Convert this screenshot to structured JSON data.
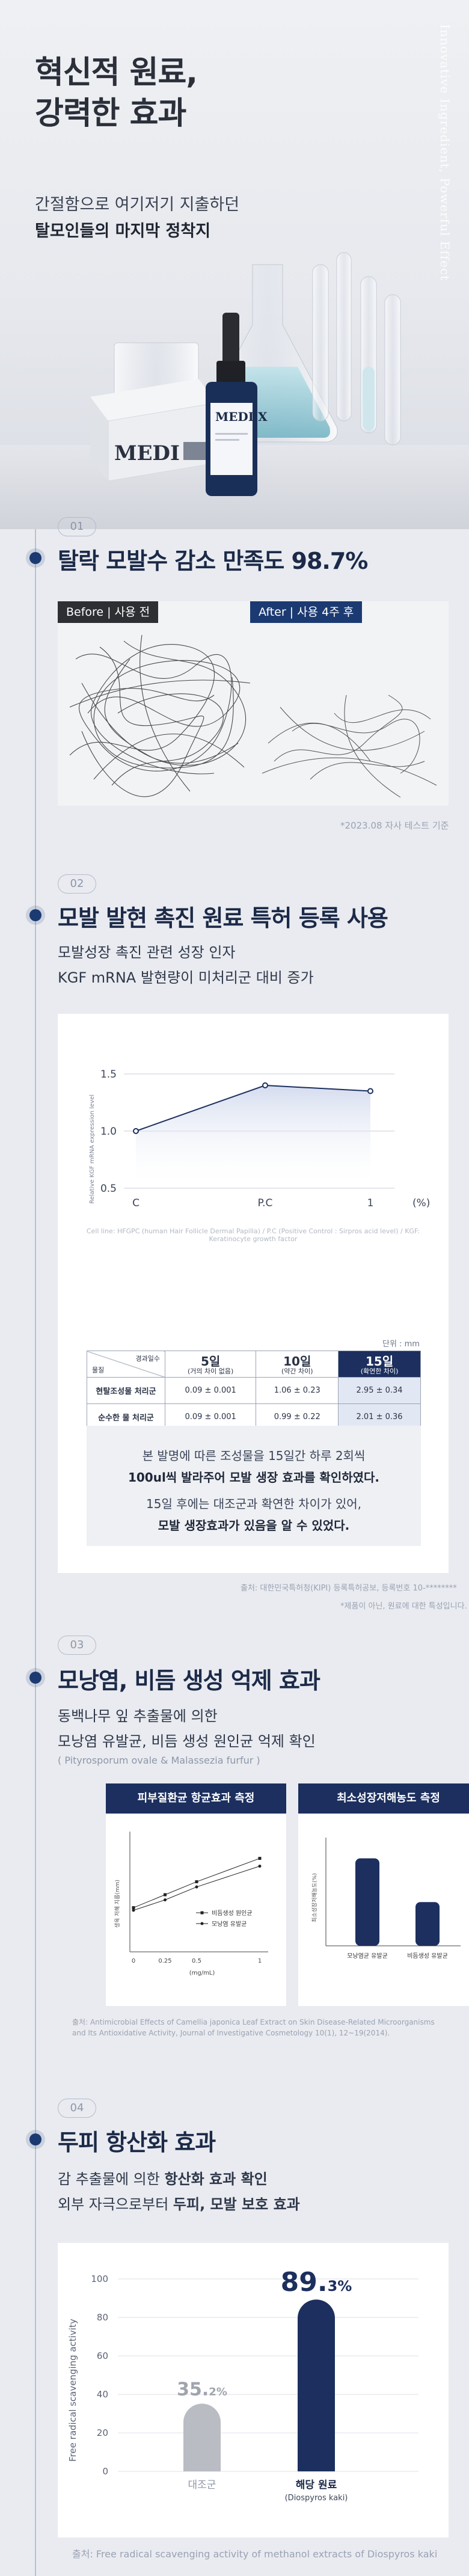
{
  "hero": {
    "title_line1": "혁신적 원료,",
    "title_line2": "강력한 효과",
    "sub1": "간절함으로 여기저기 지출하던",
    "sub2": "탈모인들의 마지막 정착지",
    "vertical_text": "Innovative Ingredient, Powerful Effect",
    "product_box_text": "MEDI X",
    "bottle_label": "MEDI X"
  },
  "section1": {
    "num": "01",
    "title": "탈락 모발수 감소 만족도 98.7%",
    "before_label": "Before | 사용 전",
    "after_label": "After | 사용 4주 후",
    "footnote": "*2023.08 자사 테스트 기준"
  },
  "section2": {
    "num": "02",
    "title": "모발 발현 촉진 원료 특허 등록 사용",
    "line1": "모발성장 촉진 관련 성장 인자",
    "line2": "KGF mRNA 발현량이 미처리군 대비 증가",
    "chart_note": "Cell line: HFGPC (human Hair Follicle Dermal Papilla) / P.C (Positive Control : Sirpros acid level) / KGF: Keratinocyte growth factor",
    "unit": "단위 : mm",
    "table": {
      "corner_top": "경과일수",
      "corner_bottom": "물질",
      "cols": [
        {
          "day": "5일",
          "sub": "(거의 차이 없음)"
        },
        {
          "day": "10일",
          "sub": "(약간 차이)"
        },
        {
          "day": "15일",
          "sub": "(확연한 차이)"
        }
      ],
      "rows": [
        {
          "label": "현탈조성물 처리군",
          "values": [
            "0.09 ± 0.001",
            "1.06 ± 0.23",
            "2.95 ± 0.34"
          ]
        },
        {
          "label": "순수한 물 처리군",
          "values": [
            "0.09 ± 0.001",
            "0.99 ± 0.22",
            "2.01 ± 0.36"
          ]
        }
      ]
    },
    "note_lines": [
      "본 발명에 따른 조성물을 15일간 하루 2회씩",
      "100ul씩 발라주어 모발 생장 효과를 확인하였다.",
      "15일 후에는 대조군과 확연한 차이가 있어,",
      "모발 생장효과가 있음을 알 수 있었다."
    ],
    "source": "출처: 대한민국특허청(KIPI) 등록특허공보, 등록번호 10-********",
    "source2": "*제품이 아닌, 원료에 대한 특성입니다."
  },
  "section3": {
    "num": "03",
    "title": "모낭염, 비듬 생성 억제 효과",
    "line1": "동백나무 잎 추출물에 의한",
    "line2": "모낭염 유발균, 비듬 생성 원인균 억제 확인",
    "line3": "( Pityrosporum ovale & Malassezia furfur )",
    "panel1_title": "피부질환균 항균효과 측정",
    "panel2_title": "최소성장저해농도 측정",
    "source": "출처: Antimicrobial Effects of Camellia japonica Leaf Extract on Skin Disease-Related Microorganisms and Its Antioxidative Activity, Journal of Investigative Cosmetology 10(1), 12~19(2014)."
  },
  "section4": {
    "num": "04",
    "title": "두피 항산화 효과",
    "line1_pre": "감 추출물에 의한 ",
    "line1_bold": "항산화 효과 확인",
    "line2_pre": "외부 자극으로부터 ",
    "line2_bold": "두피, 모발 보호 효과",
    "source": "출처: Free radical scavenging activity of methanol extracts of Diospyros kaki"
  },
  "chart_data": [
    {
      "type": "line",
      "title": "",
      "categories": [
        "C",
        "P.C",
        "1"
      ],
      "series": [
        {
          "values": [
            1.0,
            1.4,
            1.35
          ]
        }
      ],
      "ylabel": "Relative KGF mRNA expression level",
      "xlabel": "(%)",
      "ylim": [
        0.5,
        1.5
      ],
      "yticks": [
        "0.5",
        "1.0",
        "1.5"
      ]
    },
    {
      "type": "line",
      "title": "",
      "x": [
        0,
        0.25,
        0.5,
        1
      ],
      "xticks": [
        "0",
        "0.25",
        "0.5",
        "1"
      ],
      "xlabel": "(mg/mL)",
      "ylabel": "생육 저해 지름(mm)",
      "series": [
        {
          "name": "비듬생성 원인균",
          "values": [
            8.5,
            11,
            13.5,
            18
          ]
        },
        {
          "name": "모낭염 유발균",
          "values": [
            8,
            10,
            12.5,
            16.5
          ]
        }
      ]
    },
    {
      "type": "bar",
      "title": "",
      "categories": [
        "모낭염균 유발균",
        "비듬생성 유발균"
      ],
      "values": [
        20,
        10
      ],
      "ylabel": "최소성장저해농도(%)"
    },
    {
      "type": "bar",
      "title": "",
      "categories": [
        "대조군",
        "해당 원료"
      ],
      "category_sub": [
        "",
        "(Diospyros kaki)"
      ],
      "values": [
        35.2,
        89.3
      ],
      "value_labels": [
        {
          "big": "35.",
          "small": "2%"
        },
        {
          "big": "89.",
          "small": "3%"
        }
      ],
      "ylabel": "Free radical scavenging activity",
      "ylim": [
        0,
        100
      ],
      "yticks": [
        "0",
        "20",
        "40",
        "60",
        "80",
        "100"
      ],
      "colors": [
        "#b9bcc3",
        "#1c2f5e"
      ]
    }
  ]
}
